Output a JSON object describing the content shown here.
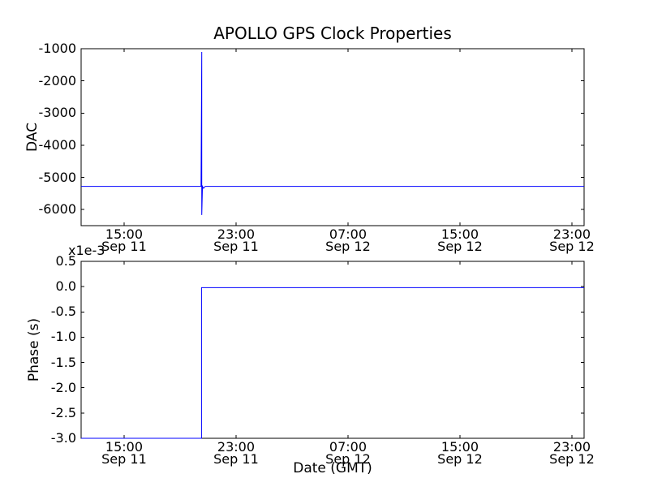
{
  "figure": {
    "background_color": "#ffffff",
    "frame_color": "#000000",
    "line_color": "#0000ff"
  },
  "chart_data": [
    {
      "type": "line",
      "name": "dac",
      "title": "APOLLO GPS Clock Properties",
      "ylabel": "DAC",
      "ylim": [
        -6500,
        -1000
      ],
      "yticks": [
        -1000,
        -2000,
        -3000,
        -4000,
        -5000,
        -6000
      ],
      "ytick_labels": [
        "-1000",
        "-2000",
        "-3000",
        "-4000",
        "-5000",
        "-6000"
      ],
      "xlim_hours": [
        11.93,
        47.87
      ],
      "xticks": [
        {
          "hour": 15,
          "time": "15:00",
          "date": "Sep 11"
        },
        {
          "hour": 23,
          "time": "23:00",
          "date": "Sep 11"
        },
        {
          "hour": 31,
          "time": "07:00",
          "date": "Sep 12"
        },
        {
          "hour": 39,
          "time": "15:00",
          "date": "Sep 12"
        },
        {
          "hour": 47,
          "time": "23:00",
          "date": "Sep 12"
        }
      ],
      "grid": false,
      "legend": "none",
      "series": [
        {
          "name": "dac-line",
          "color": "#0000ff",
          "points": [
            [
              11.93,
              -5280
            ],
            [
              20.5,
              -5280
            ],
            [
              20.55,
              -1100
            ],
            [
              20.55,
              -6170
            ],
            [
              20.6,
              -5280
            ],
            [
              20.68,
              -5340
            ],
            [
              20.8,
              -5280
            ],
            [
              47.87,
              -5280
            ]
          ]
        }
      ]
    },
    {
      "type": "line",
      "name": "phase",
      "ylabel": "Phase (s)",
      "xlabel": "Date (GMT)",
      "offset_text": "x1e-3",
      "unit_note": "y values in units of 1e-3 seconds",
      "ylim": [
        -3.0,
        0.5
      ],
      "yticks": [
        0.5,
        0.0,
        -0.5,
        -1.0,
        -1.5,
        -2.0,
        -2.5,
        -3.0
      ],
      "ytick_labels": [
        "0.5",
        "0.0",
        "-0.5",
        "-1.0",
        "-1.5",
        "-2.0",
        "-2.5",
        "-3.0"
      ],
      "xlim_hours": [
        11.93,
        47.87
      ],
      "xticks": [
        {
          "hour": 15,
          "time": "15:00",
          "date": "Sep 11"
        },
        {
          "hour": 23,
          "time": "23:00",
          "date": "Sep 11"
        },
        {
          "hour": 31,
          "time": "07:00",
          "date": "Sep 12"
        },
        {
          "hour": 39,
          "time": "15:00",
          "date": "Sep 12"
        },
        {
          "hour": 47,
          "time": "23:00",
          "date": "Sep 12"
        }
      ],
      "grid": false,
      "legend": "none",
      "series": [
        {
          "name": "phase-line",
          "color": "#0000ff",
          "points": [
            [
              11.93,
              -3.0
            ],
            [
              20.53,
              -3.0
            ],
            [
              20.53,
              -0.02
            ],
            [
              47.87,
              -0.02
            ]
          ]
        }
      ]
    }
  ]
}
